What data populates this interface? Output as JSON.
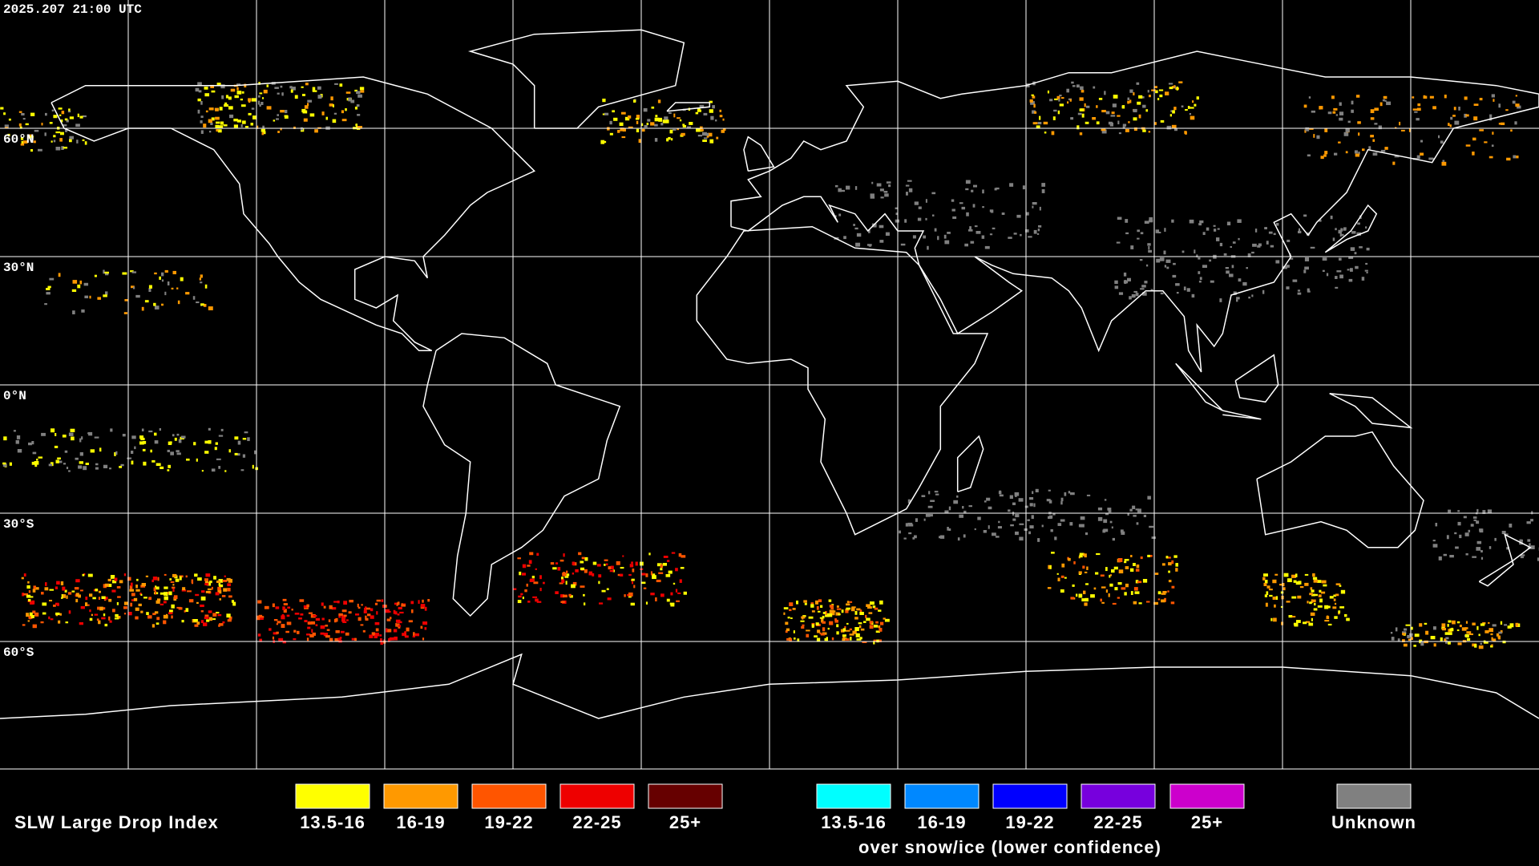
{
  "header": {
    "timestamp": "2025.207 21:00 UTC"
  },
  "map": {
    "latitudes": [
      {
        "value": 60,
        "label": "60°N"
      },
      {
        "value": 30,
        "label": "30°N"
      },
      {
        "value": 0,
        "label": "0°N"
      },
      {
        "value": -30,
        "label": "30°S"
      },
      {
        "value": -60,
        "label": "60°S"
      }
    ]
  },
  "legend": {
    "title": "SLW Large Drop Index",
    "groups": [
      {
        "items": [
          {
            "label": "13.5-16",
            "color": "#ffff00"
          },
          {
            "label": "16-19",
            "color": "#ff9900"
          },
          {
            "label": "19-22",
            "color": "#ff5500"
          },
          {
            "label": "22-25",
            "color": "#ee0000"
          },
          {
            "label": "25+",
            "color": "#660000"
          }
        ]
      },
      {
        "items": [
          {
            "label": "13.5-16",
            "color": "#00ffff"
          },
          {
            "label": "16-19",
            "color": "#0088ff"
          },
          {
            "label": "19-22",
            "color": "#0000ff"
          },
          {
            "label": "22-25",
            "color": "#7700dd"
          },
          {
            "label": "25+",
            "color": "#cc00cc"
          }
        ],
        "caption": "over snow/ice (lower confidence)"
      },
      {
        "items": [
          {
            "label": "Unknown",
            "color": "#808080"
          }
        ]
      }
    ]
  }
}
